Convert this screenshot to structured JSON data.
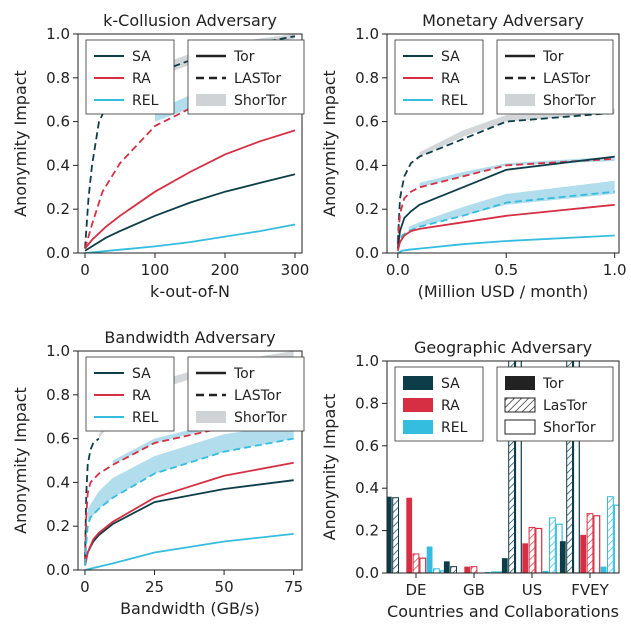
{
  "colors": {
    "SA": "#0e3d4a",
    "RA": "#d62f43",
    "REL": "#35bde0",
    "band": "#a9d9ea",
    "gray_band": "#cfd3d6"
  },
  "legend_type_labels": {
    "tor": "Tor",
    "lastor_line": "LASTor",
    "shortor": "ShorTor",
    "lastor_bar": "LasTor"
  },
  "chart_data": [
    {
      "id": "k-collusion",
      "type": "line",
      "title": "k-Collusion Adversary",
      "xlabel": "k-out-of-N",
      "ylabel": "Anonymity Impact",
      "xlim": [
        -10,
        310
      ],
      "ylim": [
        0,
        1.0
      ],
      "xticks": [
        0,
        100,
        200,
        300
      ],
      "xtick_labels": [
        "0",
        "100",
        "200",
        "300"
      ],
      "yticks": [
        0.0,
        0.2,
        0.4,
        0.6,
        0.8,
        1.0
      ],
      "ytick_labels": [
        "0.0",
        "0.2",
        "0.4",
        "0.6",
        "0.8",
        "1.0"
      ],
      "legend_series": [
        "SA",
        "RA",
        "REL"
      ],
      "series": [
        {
          "name": "SA",
          "variant": "Tor",
          "x": [
            0,
            10,
            30,
            50,
            100,
            150,
            200,
            250,
            300
          ],
          "y": [
            0.01,
            0.03,
            0.07,
            0.1,
            0.17,
            0.23,
            0.28,
            0.32,
            0.36
          ]
        },
        {
          "name": "RA",
          "variant": "Tor",
          "x": [
            0,
            10,
            30,
            50,
            100,
            150,
            200,
            250,
            300
          ],
          "y": [
            0.02,
            0.06,
            0.12,
            0.17,
            0.28,
            0.37,
            0.45,
            0.51,
            0.56
          ]
        },
        {
          "name": "REL",
          "variant": "Tor",
          "x": [
            0,
            50,
            100,
            150,
            200,
            250,
            300
          ],
          "y": [
            0.0,
            0.015,
            0.03,
            0.05,
            0.075,
            0.1,
            0.13
          ]
        },
        {
          "name": "SA",
          "variant": "LASTor",
          "x": [
            0,
            5,
            10,
            20,
            40
          ],
          "y": [
            0.02,
            0.25,
            0.4,
            0.6,
            0.73
          ]
        },
        {
          "name": "RA",
          "variant": "LASTor",
          "x": [
            0,
            10,
            25,
            50,
            100,
            150,
            200,
            250,
            300
          ],
          "y": [
            0.02,
            0.13,
            0.28,
            0.41,
            0.58,
            0.66,
            0.72,
            0.77,
            0.82
          ]
        },
        {
          "name": "SA",
          "variant": "LASTor",
          "x": [
            40,
            100,
            150,
            200,
            250,
            300
          ],
          "y": [
            0.73,
            0.82,
            0.88,
            0.93,
            0.96,
            0.99
          ]
        }
      ],
      "bands": [
        {
          "name": "SA",
          "variant": "ShorTor",
          "x": [
            40,
            100,
            150,
            200,
            250,
            300
          ],
          "lo": [
            0.72,
            0.8,
            0.86,
            0.91,
            0.95,
            0.98
          ],
          "hi": [
            0.76,
            0.85,
            0.91,
            0.95,
            0.98,
            1.0
          ]
        },
        {
          "name": "RA",
          "variant": "ShorTor",
          "x": [
            100,
            150,
            200,
            250,
            300
          ],
          "lo": [
            0.6,
            0.66,
            0.72,
            0.78,
            0.82
          ],
          "hi": [
            0.65,
            0.72,
            0.78,
            0.84,
            0.88
          ]
        }
      ]
    },
    {
      "id": "monetary",
      "type": "line",
      "title": "Monetary Adversary",
      "xlabel": "(Million USD / month)",
      "ylabel": "Anonymity Impact",
      "xlim": [
        -0.05,
        1.02
      ],
      "ylim": [
        0,
        1.0
      ],
      "xticks": [
        0.0,
        0.5,
        1.0
      ],
      "xtick_labels": [
        "0.0",
        "0.5",
        "1.0"
      ],
      "yticks": [
        0.0,
        0.2,
        0.4,
        0.6,
        0.8,
        1.0
      ],
      "ytick_labels": [
        "0.0",
        "0.2",
        "0.4",
        "0.6",
        "0.8",
        "1.0"
      ],
      "legend_series": [
        "SA",
        "RA",
        "REL"
      ],
      "series": [
        {
          "name": "SA",
          "variant": "LASTor",
          "x": [
            0,
            0.01,
            0.03,
            0.06,
            0.1,
            0.3,
            0.5,
            1.0
          ],
          "y": [
            0.05,
            0.25,
            0.35,
            0.41,
            0.44,
            0.52,
            0.6,
            0.64
          ]
        },
        {
          "name": "RA",
          "variant": "LASTor",
          "x": [
            0,
            0.01,
            0.03,
            0.06,
            0.1,
            0.3,
            0.5,
            1.0
          ],
          "y": [
            0.04,
            0.18,
            0.25,
            0.28,
            0.3,
            0.35,
            0.4,
            0.43
          ]
        },
        {
          "name": "REL",
          "variant": "LASTor",
          "x": [
            0,
            0.02,
            0.05,
            0.1,
            0.3,
            0.5,
            1.0
          ],
          "y": [
            0.02,
            0.08,
            0.1,
            0.12,
            0.17,
            0.23,
            0.28
          ]
        },
        {
          "name": "SA",
          "variant": "Tor",
          "x": [
            0,
            0.01,
            0.03,
            0.06,
            0.1,
            0.3,
            0.5,
            1.0
          ],
          "y": [
            0.02,
            0.1,
            0.16,
            0.19,
            0.22,
            0.3,
            0.38,
            0.44
          ]
        },
        {
          "name": "RA",
          "variant": "Tor",
          "x": [
            0,
            0.01,
            0.03,
            0.06,
            0.1,
            0.3,
            0.5,
            1.0
          ],
          "y": [
            0.01,
            0.05,
            0.08,
            0.1,
            0.11,
            0.14,
            0.17,
            0.22
          ]
        },
        {
          "name": "REL",
          "variant": "Tor",
          "x": [
            0,
            0.02,
            0.05,
            0.1,
            0.3,
            0.5,
            1.0
          ],
          "y": [
            0.0,
            0.01,
            0.015,
            0.02,
            0.04,
            0.055,
            0.08
          ]
        }
      ],
      "bands": [
        {
          "name": "SA",
          "variant": "ShorTor",
          "x": [
            0.1,
            0.3,
            0.5,
            1.0
          ],
          "lo": [
            0.44,
            0.53,
            0.6,
            0.64
          ],
          "hi": [
            0.46,
            0.56,
            0.63,
            0.66
          ]
        },
        {
          "name": "RA",
          "variant": "ShorTor",
          "x": [
            0.1,
            0.3,
            0.5,
            1.0
          ],
          "lo": [
            0.3,
            0.35,
            0.4,
            0.42
          ],
          "hi": [
            0.32,
            0.37,
            0.41,
            0.44
          ]
        },
        {
          "name": "REL",
          "variant": "ShorTor",
          "x": [
            0.05,
            0.1,
            0.3,
            0.5,
            1.0
          ],
          "lo": [
            0.1,
            0.12,
            0.17,
            0.22,
            0.27
          ],
          "hi": [
            0.12,
            0.14,
            0.21,
            0.27,
            0.33
          ]
        }
      ]
    },
    {
      "id": "bandwidth",
      "type": "line",
      "title": "Bandwidth Adversary",
      "xlabel": "Bandwidth (GB/s)",
      "ylabel": "Anonymity Impact",
      "xlim": [
        -2.5,
        78
      ],
      "ylim": [
        0,
        1.0
      ],
      "xticks": [
        0,
        25,
        50,
        75
      ],
      "xtick_labels": [
        "0",
        "25",
        "50",
        "75"
      ],
      "yticks": [
        0.0,
        0.2,
        0.4,
        0.6,
        0.8,
        1.0
      ],
      "ytick_labels": [
        "0.0",
        "0.2",
        "0.4",
        "0.6",
        "0.8",
        "1.0"
      ],
      "legend_series": [
        "SA",
        "RA",
        "REL"
      ],
      "series": [
        {
          "name": "SA",
          "variant": "Tor",
          "x": [
            0,
            1,
            3,
            5,
            10,
            25,
            50,
            75
          ],
          "y": [
            0.02,
            0.08,
            0.13,
            0.16,
            0.21,
            0.31,
            0.37,
            0.41
          ]
        },
        {
          "name": "RA",
          "variant": "Tor",
          "x": [
            0,
            1,
            3,
            5,
            10,
            25,
            50,
            75
          ],
          "y": [
            0.02,
            0.08,
            0.14,
            0.17,
            0.22,
            0.33,
            0.43,
            0.49
          ]
        },
        {
          "name": "REL",
          "variant": "Tor",
          "x": [
            0,
            10,
            25,
            50,
            75
          ],
          "y": [
            0.0,
            0.03,
            0.08,
            0.13,
            0.165
          ]
        },
        {
          "name": "SA",
          "variant": "LASTor",
          "x": [
            0,
            0.5,
            1,
            2,
            3,
            5
          ],
          "y": [
            0.05,
            0.35,
            0.48,
            0.55,
            0.58,
            0.6
          ]
        },
        {
          "name": "RA",
          "variant": "LASTor",
          "x": [
            0,
            0.5,
            1,
            2,
            5,
            10,
            25,
            50,
            75
          ],
          "y": [
            0.03,
            0.25,
            0.35,
            0.4,
            0.44,
            0.48,
            0.58,
            0.65,
            0.7
          ]
        },
        {
          "name": "REL",
          "variant": "LASTor",
          "x": [
            0,
            0.5,
            1,
            2,
            5,
            10,
            25,
            50,
            75
          ],
          "y": [
            0.02,
            0.12,
            0.2,
            0.24,
            0.28,
            0.33,
            0.44,
            0.54,
            0.6
          ]
        }
      ],
      "bands": [
        {
          "name": "SA",
          "variant": "ShorTor",
          "x": [
            5,
            10,
            25,
            50,
            75
          ],
          "lo": [
            0.6,
            0.68,
            0.82,
            0.92,
            0.96
          ],
          "hi": [
            0.62,
            0.72,
            0.86,
            0.95,
            1.0
          ]
        },
        {
          "name": "RA",
          "variant": "ShorTor",
          "x": [
            10,
            25,
            50,
            75
          ],
          "lo": [
            0.48,
            0.58,
            0.66,
            0.7
          ],
          "hi": [
            0.5,
            0.6,
            0.68,
            0.72
          ]
        },
        {
          "name": "REL",
          "variant": "ShorTor",
          "x": [
            1,
            5,
            10,
            25,
            50,
            75
          ],
          "lo": [
            0.22,
            0.28,
            0.33,
            0.44,
            0.54,
            0.6
          ],
          "hi": [
            0.28,
            0.36,
            0.42,
            0.52,
            0.62,
            0.67
          ]
        }
      ]
    },
    {
      "id": "geographic",
      "type": "bar",
      "title": "Geographic Adversary",
      "xlabel": "Countries and Collaborations",
      "ylabel": "Anonymity Impact",
      "ylim": [
        0,
        1.0
      ],
      "yticks": [
        0.0,
        0.2,
        0.4,
        0.6,
        0.8,
        1.0
      ],
      "ytick_labels": [
        "0.0",
        "0.2",
        "0.4",
        "0.6",
        "0.8",
        "1.0"
      ],
      "categories": [
        "DE",
        "GB",
        "US",
        "FVEY"
      ],
      "legend_series": [
        "SA",
        "RA",
        "REL"
      ],
      "series": [
        {
          "name": "SA",
          "variant": "Tor",
          "values": [
            0.36,
            0.055,
            0.07,
            0.15
          ]
        },
        {
          "name": "SA",
          "variant": "LasTor",
          "values": [
            0.355,
            0.03,
            1.0,
            1.0
          ]
        },
        {
          "name": "SA",
          "variant": "ShorTor",
          "values": [
            0.0,
            0.0,
            1.0,
            1.0
          ]
        },
        {
          "name": "RA",
          "variant": "Tor",
          "values": [
            0.355,
            0.03,
            0.14,
            0.18
          ]
        },
        {
          "name": "RA",
          "variant": "LasTor",
          "values": [
            0.09,
            0.03,
            0.215,
            0.28
          ]
        },
        {
          "name": "RA",
          "variant": "ShorTor",
          "values": [
            0.07,
            0.0,
            0.21,
            0.27
          ]
        },
        {
          "name": "REL",
          "variant": "Tor",
          "values": [
            0.125,
            0.005,
            0.01,
            0.03
          ]
        },
        {
          "name": "REL",
          "variant": "LasTor",
          "values": [
            0.02,
            0.005,
            0.26,
            0.36
          ]
        },
        {
          "name": "REL",
          "variant": "ShorTor",
          "values": [
            0.01,
            0.005,
            0.23,
            0.32
          ]
        }
      ]
    }
  ]
}
